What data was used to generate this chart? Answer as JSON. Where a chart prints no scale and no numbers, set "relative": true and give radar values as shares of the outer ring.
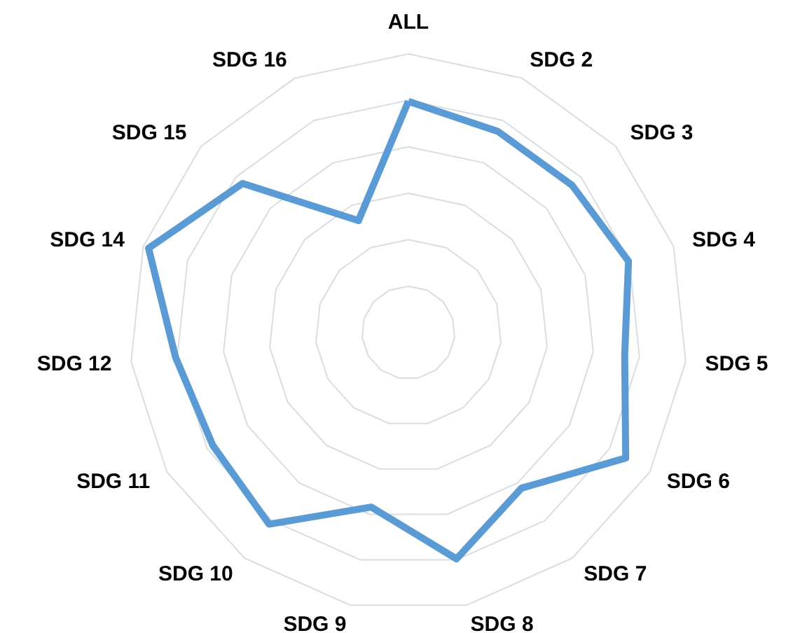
{
  "chart_data": {
    "type": "radar",
    "relative": true,
    "categories": [
      "ALL",
      "SDG 2",
      "SDG 3",
      "SDG 4",
      "SDG 5",
      "SDG 6",
      "SDG 7",
      "SDG 8",
      "SDG 9",
      "SDG 10",
      "SDG 11",
      "SDG 12",
      "SDG 14",
      "SDG 15",
      "SDG 16"
    ],
    "series": [
      {
        "color": "#5b9bd5",
        "values": [
          0.83,
          0.79,
          0.79,
          0.83,
          0.78,
          0.9,
          0.69,
          0.83,
          0.64,
          0.85,
          0.81,
          0.84,
          0.98,
          0.8,
          0.44
        ]
      }
    ],
    "grid": true,
    "marker": "none",
    "line_style": "solid"
  }
}
